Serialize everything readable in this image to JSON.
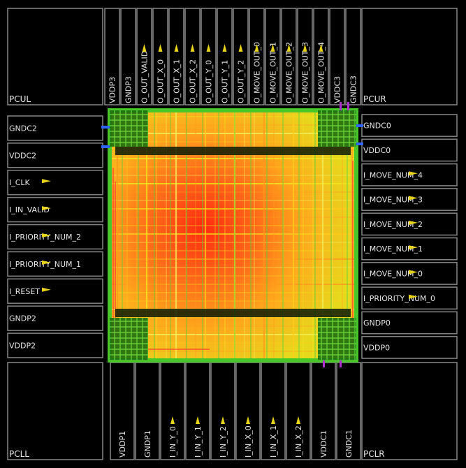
{
  "corners": {
    "top_left": "PCUL",
    "top_right": "PCUR",
    "bottom_left": "PCLL",
    "bottom_right": "PCLR"
  },
  "top_pads": [
    {
      "name": "VDDP3",
      "arrow": false
    },
    {
      "name": "GNDP3",
      "arrow": false
    },
    {
      "name": "O_OUT_VALID",
      "arrow": true
    },
    {
      "name": "O_OUT_X_0",
      "arrow": true
    },
    {
      "name": "O_OUT_X_1",
      "arrow": true
    },
    {
      "name": "O_OUT_X_2",
      "arrow": true
    },
    {
      "name": "O_OUT_Y_0",
      "arrow": true
    },
    {
      "name": "O_OUT_Y_1",
      "arrow": true
    },
    {
      "name": "O_OUT_Y_2",
      "arrow": true
    },
    {
      "name": "O_MOVE_OUT_0",
      "arrow": true
    },
    {
      "name": "O_MOVE_OUT_1",
      "arrow": true
    },
    {
      "name": "O_MOVE_OUT_2",
      "arrow": true
    },
    {
      "name": "O_MOVE_OUT_3",
      "arrow": true
    },
    {
      "name": "O_MOVE_OUT_4",
      "arrow": true
    },
    {
      "name": "VDDC3",
      "arrow": false
    },
    {
      "name": "GNDC3",
      "arrow": false
    }
  ],
  "bottom_pads": [
    {
      "name": "VDDP1",
      "arrow": false
    },
    {
      "name": "GNDP1",
      "arrow": false
    },
    {
      "name": "I_IN_Y_0",
      "arrow": true
    },
    {
      "name": "I_IN_Y_1",
      "arrow": true
    },
    {
      "name": "I_IN_Y_2",
      "arrow": true
    },
    {
      "name": "I_IN_X_0",
      "arrow": true
    },
    {
      "name": "I_IN_X_1",
      "arrow": true
    },
    {
      "name": "I_IN_X_2",
      "arrow": true
    },
    {
      "name": "VDDC1",
      "arrow": false
    },
    {
      "name": "GNDC1",
      "arrow": false
    }
  ],
  "left_pads": [
    {
      "name": "GNDC2",
      "arrow": false
    },
    {
      "name": "VDDC2",
      "arrow": false
    },
    {
      "name": "I_CLK",
      "arrow": true
    },
    {
      "name": "I_IN_VALID",
      "arrow": true
    },
    {
      "name": "I_PRIORITY_NUM_2",
      "arrow": true
    },
    {
      "name": "I_PRIORITY_NUM_1",
      "arrow": true
    },
    {
      "name": "I_RESET",
      "arrow": true
    },
    {
      "name": "GNDP2",
      "arrow": false
    },
    {
      "name": "VDDP2",
      "arrow": false
    }
  ],
  "right_pads": [
    {
      "name": "GNDC0",
      "arrow": false
    },
    {
      "name": "VDDC0",
      "arrow": false
    },
    {
      "name": "I_MOVE_NUM_4",
      "arrow": true
    },
    {
      "name": "I_MOVE_NUM_3",
      "arrow": true
    },
    {
      "name": "I_MOVE_NUM_2",
      "arrow": true
    },
    {
      "name": "I_MOVE_NUM_1",
      "arrow": true
    },
    {
      "name": "I_MOVE_NUM_0",
      "arrow": true
    },
    {
      "name": "I_PRIORITY_NUM_0",
      "arrow": true
    },
    {
      "name": "GNDP0",
      "arrow": false
    },
    {
      "name": "VDDP0",
      "arrow": false
    }
  ],
  "colors": {
    "background": "#000000",
    "pad_outline": "#7f7f7f",
    "label_text": "#e6e6e6",
    "arrow": "#e8d31a",
    "power_ring": "#49c72a",
    "routing_hot": "#ff2a10",
    "routing_mid": "#ff9a1c",
    "routing_cool": "#f2e61c",
    "pin_marker": "#2f63ff"
  }
}
